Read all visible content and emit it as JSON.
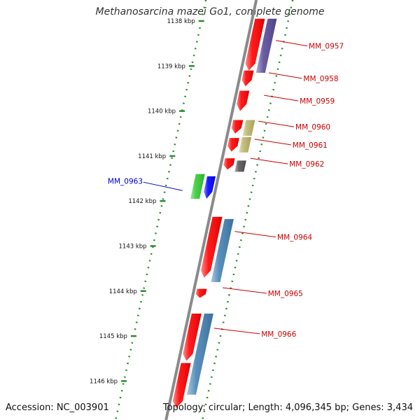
{
  "title": "Methanosarcina mazei Go1, complete genome",
  "accession_text": "Accession: NC_003901",
  "topology_text": "Topology: circular; Length: 4,096,345 bp; Genes: 3,434",
  "colors": {
    "backbone": "#8a8a8a",
    "tick": "#2e8b2e",
    "forward_gene": "#ff0000",
    "reverse_label": "#0000cc",
    "forward_label": "#cc0000"
  },
  "ticks": [
    {
      "label": "1138 kbp",
      "kbp": 1138
    },
    {
      "label": "1139 kbp",
      "kbp": 1139
    },
    {
      "label": "1140 kbp",
      "kbp": 1140
    },
    {
      "label": "1141 kbp",
      "kbp": 1141
    },
    {
      "label": "1142 kbp",
      "kbp": 1142
    },
    {
      "label": "1143 kbp",
      "kbp": 1143
    },
    {
      "label": "1144 kbp",
      "kbp": 1144
    },
    {
      "label": "1145 kbp",
      "kbp": 1145
    },
    {
      "label": "1146 kbp",
      "kbp": 1146
    }
  ],
  "genes": [
    {
      "label": "MM_0957",
      "side": "outer",
      "start": 1137.95,
      "end": 1139.1,
      "color": "#ff0000",
      "second": {
        "start": 1137.95,
        "end": 1139.15,
        "color": "#5a4a9a"
      }
    },
    {
      "label": "MM_0958",
      "side": "outer",
      "start": 1139.1,
      "end": 1139.45,
      "color": "#ff0000"
    },
    {
      "label": "MM_0959",
      "side": "outer",
      "start": 1139.55,
      "end": 1140.0,
      "color": "#ff0000"
    },
    {
      "label": "MM_0960",
      "side": "outer",
      "start": 1140.2,
      "end": 1140.5,
      "color": "#ff0000",
      "second": {
        "start": 1140.2,
        "end": 1140.55,
        "color": "#bdb76b"
      }
    },
    {
      "label": "MM_0961",
      "side": "outer",
      "start": 1140.6,
      "end": 1140.9,
      "color": "#ff0000",
      "second": {
        "start": 1140.58,
        "end": 1140.92,
        "color": "#bdb76b"
      }
    },
    {
      "label": "MM_0962",
      "side": "outer",
      "start": 1141.05,
      "end": 1141.3,
      "color": "#ff0000",
      "second": {
        "start": 1141.1,
        "end": 1141.35,
        "color": "#555555"
      }
    },
    {
      "label": "MM_0963",
      "side": "inner",
      "start": 1141.4,
      "end": 1141.95,
      "color": "#33cc33",
      "second": {
        "start": 1141.45,
        "end": 1141.95,
        "color": "#0000ff"
      }
    },
    {
      "label": "MM_0964",
      "side": "outer",
      "start": 1142.35,
      "end": 1143.7,
      "color": "#ff0000",
      "second": {
        "start": 1142.4,
        "end": 1143.8,
        "color": "#4682b4"
      }
    },
    {
      "label": "MM_0965",
      "side": "outer",
      "start": 1143.95,
      "end": 1144.15,
      "color": "#ff0000"
    },
    {
      "label": "MM_0966",
      "side": "outer",
      "start": 1144.5,
      "end": 1145.55,
      "color": "#ff0000",
      "second": {
        "start": 1144.5,
        "end": 1146.3,
        "color": "#4682b4"
      }
    },
    {
      "label": "",
      "side": "outer",
      "start": 1145.6,
      "end": 1146.6,
      "color": "#ff0000"
    }
  ]
}
